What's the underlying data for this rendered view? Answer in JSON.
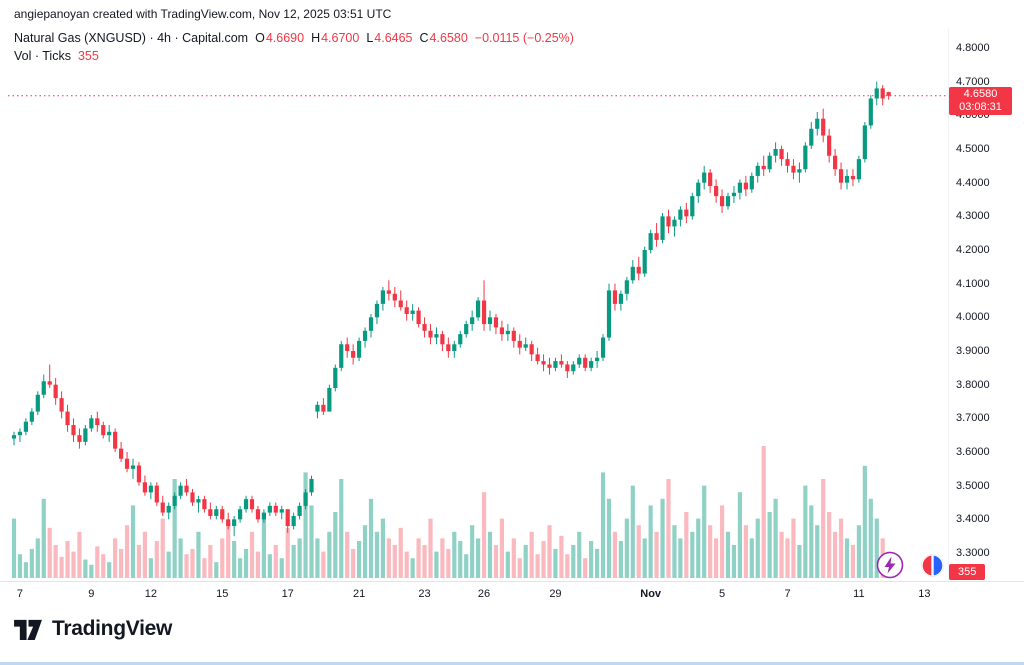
{
  "attribution": "angiepanoyan created with TradingView.com, Nov 12, 2025 03:51 UTC",
  "header": {
    "symbol_title": "Natural Gas (XNGUSD) · 4h · Capital.com",
    "ohlc": {
      "o_label": "O",
      "o": "4.6690",
      "h_label": "H",
      "h": "4.6700",
      "l_label": "L",
      "l": "4.6465",
      "c_label": "C",
      "c": "4.6580",
      "change": "−0.0115 (−0.25%)"
    },
    "volume_label": "Vol · Ticks",
    "volume_value": "355"
  },
  "badges": {
    "volume": "355"
  },
  "price_axis": {
    "labels": [
      "4.8000",
      "4.7000",
      "4.6000",
      "4.5000",
      "4.4000",
      "4.3000",
      "4.2000",
      "4.1000",
      "4.0000",
      "3.9000",
      "3.8000",
      "3.7000",
      "3.6000",
      "3.5000",
      "3.4000",
      "3.3000"
    ]
  },
  "time_axis": {
    "labels": [
      {
        "text": "7",
        "i": 1
      },
      {
        "text": "9",
        "i": 13
      },
      {
        "text": "12",
        "i": 23
      },
      {
        "text": "15",
        "i": 35
      },
      {
        "text": "17",
        "i": 46
      },
      {
        "text": "21",
        "i": 58
      },
      {
        "text": "23",
        "i": 69
      },
      {
        "text": "26",
        "i": 79
      },
      {
        "text": "29",
        "i": 91
      },
      {
        "text": "Nov",
        "i": 107,
        "bold": true
      },
      {
        "text": "5",
        "i": 119
      },
      {
        "text": "7",
        "i": 130
      },
      {
        "text": "11",
        "i": 142
      },
      {
        "text": "13",
        "i": 153
      }
    ]
  },
  "colors": {
    "up": "#089981",
    "down": "#f23645",
    "vol_up": "rgba(8,153,129,0.45)",
    "vol_down": "rgba(242,54,69,0.35)",
    "badge": "#f23645",
    "axis_text": "#131722",
    "lightning": "#9c27b0",
    "broker_red": "#f23645",
    "broker_blue": "#2962ff"
  },
  "footer": {
    "logo_text": "TradingView"
  },
  "chart_data": {
    "type": "candlestick",
    "title": "Natural Gas (XNGUSD) · 4h · Capital.com",
    "symbol": "XNGUSD",
    "interval": "4h",
    "exchange": "Capital.com",
    "ohlc_current": {
      "open": 4.669,
      "high": 4.67,
      "low": 4.6465,
      "close": 4.658,
      "change": -0.0115,
      "change_pct": -0.25
    },
    "volume_current": 355,
    "volume_unit": "Ticks",
    "ylim": [
      3.3,
      4.8
    ],
    "y_ticks": [
      4.8,
      4.7,
      4.6,
      4.5,
      4.4,
      4.3,
      4.2,
      4.1,
      4.0,
      3.9,
      3.8,
      3.7,
      3.6,
      3.5,
      3.4,
      3.3
    ],
    "x_tick_labels": [
      "7",
      "9",
      "12",
      "15",
      "17",
      "21",
      "23",
      "26",
      "29",
      "Nov",
      "5",
      "7",
      "11",
      "13"
    ],
    "last": {
      "price": 4.658,
      "value": "4.6580",
      "countdown": "03:08:31"
    },
    "candles": [
      [
        3.64,
        3.66,
        3.62,
        3.65
      ],
      [
        3.65,
        3.67,
        3.63,
        3.66
      ],
      [
        3.66,
        3.7,
        3.65,
        3.69
      ],
      [
        3.69,
        3.73,
        3.68,
        3.72
      ],
      [
        3.72,
        3.78,
        3.71,
        3.77
      ],
      [
        3.77,
        3.83,
        3.76,
        3.81
      ],
      [
        3.81,
        3.86,
        3.79,
        3.8
      ],
      [
        3.8,
        3.82,
        3.74,
        3.76
      ],
      [
        3.76,
        3.78,
        3.7,
        3.72
      ],
      [
        3.72,
        3.74,
        3.66,
        3.68
      ],
      [
        3.68,
        3.7,
        3.63,
        3.65
      ],
      [
        3.65,
        3.67,
        3.61,
        3.63
      ],
      [
        3.63,
        3.68,
        3.62,
        3.67
      ],
      [
        3.67,
        3.71,
        3.66,
        3.7
      ],
      [
        3.7,
        3.72,
        3.66,
        3.68
      ],
      [
        3.68,
        3.69,
        3.64,
        3.65
      ],
      [
        3.65,
        3.68,
        3.63,
        3.66
      ],
      [
        3.66,
        3.67,
        3.6,
        3.61
      ],
      [
        3.61,
        3.63,
        3.57,
        3.58
      ],
      [
        3.58,
        3.6,
        3.54,
        3.55
      ],
      [
        3.55,
        3.58,
        3.52,
        3.56
      ],
      [
        3.56,
        3.57,
        3.5,
        3.51
      ],
      [
        3.51,
        3.53,
        3.47,
        3.48
      ],
      [
        3.48,
        3.51,
        3.46,
        3.5
      ],
      [
        3.5,
        3.51,
        3.44,
        3.45
      ],
      [
        3.45,
        3.47,
        3.41,
        3.42
      ],
      [
        3.42,
        3.45,
        3.4,
        3.44
      ],
      [
        3.44,
        3.48,
        3.43,
        3.47
      ],
      [
        3.47,
        3.51,
        3.46,
        3.5
      ],
      [
        3.5,
        3.52,
        3.47,
        3.48
      ],
      [
        3.48,
        3.49,
        3.44,
        3.45
      ],
      [
        3.45,
        3.47,
        3.42,
        3.46
      ],
      [
        3.46,
        3.47,
        3.42,
        3.43
      ],
      [
        3.43,
        3.45,
        3.4,
        3.41
      ],
      [
        3.41,
        3.44,
        3.4,
        3.43
      ],
      [
        3.43,
        3.44,
        3.39,
        3.4
      ],
      [
        3.4,
        3.42,
        3.37,
        3.38
      ],
      [
        3.38,
        3.41,
        3.35,
        3.4
      ],
      [
        3.4,
        3.44,
        3.39,
        3.43
      ],
      [
        3.43,
        3.47,
        3.42,
        3.46
      ],
      [
        3.46,
        3.47,
        3.42,
        3.43
      ],
      [
        3.43,
        3.44,
        3.39,
        3.4
      ],
      [
        3.4,
        3.43,
        3.39,
        3.42
      ],
      [
        3.42,
        3.45,
        3.41,
        3.44
      ],
      [
        3.44,
        3.45,
        3.41,
        3.42
      ],
      [
        3.42,
        3.44,
        3.4,
        3.43
      ],
      [
        3.43,
        3.43,
        3.36,
        3.38
      ],
      [
        3.38,
        3.42,
        3.37,
        3.41
      ],
      [
        3.41,
        3.45,
        3.4,
        3.44
      ],
      [
        3.44,
        3.49,
        3.43,
        3.48
      ],
      [
        3.48,
        3.53,
        3.47,
        3.52
      ],
      [
        3.72,
        3.75,
        3.7,
        3.74
      ],
      [
        3.74,
        3.76,
        3.71,
        3.72
      ],
      [
        3.72,
        3.8,
        3.72,
        3.79
      ],
      [
        3.79,
        3.86,
        3.78,
        3.85
      ],
      [
        3.85,
        3.93,
        3.84,
        3.92
      ],
      [
        3.92,
        3.94,
        3.88,
        3.9
      ],
      [
        3.9,
        3.92,
        3.86,
        3.88
      ],
      [
        3.88,
        3.94,
        3.87,
        3.93
      ],
      [
        3.93,
        3.97,
        3.91,
        3.96
      ],
      [
        3.96,
        4.01,
        3.94,
        4.0
      ],
      [
        4.0,
        4.05,
        3.98,
        4.04
      ],
      [
        4.04,
        4.09,
        4.02,
        4.08
      ],
      [
        4.08,
        4.11,
        4.05,
        4.07
      ],
      [
        4.07,
        4.09,
        4.03,
        4.05
      ],
      [
        4.05,
        4.08,
        4.02,
        4.03
      ],
      [
        4.03,
        4.05,
        3.99,
        4.01
      ],
      [
        4.01,
        4.04,
        3.99,
        4.02
      ],
      [
        4.02,
        4.03,
        3.97,
        3.98
      ],
      [
        3.98,
        4.0,
        3.94,
        3.96
      ],
      [
        3.96,
        3.98,
        3.92,
        3.94
      ],
      [
        3.94,
        3.97,
        3.92,
        3.95
      ],
      [
        3.95,
        3.96,
        3.9,
        3.92
      ],
      [
        3.92,
        3.94,
        3.88,
        3.9
      ],
      [
        3.9,
        3.93,
        3.88,
        3.92
      ],
      [
        3.92,
        3.96,
        3.91,
        3.95
      ],
      [
        3.95,
        3.99,
        3.94,
        3.98
      ],
      [
        3.98,
        4.02,
        3.96,
        4.0
      ],
      [
        4.0,
        4.06,
        3.99,
        4.05
      ],
      [
        4.05,
        4.11,
        3.96,
        3.98
      ],
      [
        3.98,
        4.02,
        3.96,
        4.0
      ],
      [
        4.0,
        4.01,
        3.95,
        3.97
      ],
      [
        3.97,
        3.99,
        3.93,
        3.95
      ],
      [
        3.95,
        3.98,
        3.93,
        3.96
      ],
      [
        3.96,
        3.97,
        3.91,
        3.93
      ],
      [
        3.93,
        3.95,
        3.89,
        3.91
      ],
      [
        3.91,
        3.94,
        3.9,
        3.92
      ],
      [
        3.92,
        3.93,
        3.87,
        3.89
      ],
      [
        3.89,
        3.91,
        3.86,
        3.87
      ],
      [
        3.87,
        3.89,
        3.84,
        3.86
      ],
      [
        3.86,
        3.88,
        3.83,
        3.85
      ],
      [
        3.85,
        3.88,
        3.84,
        3.87
      ],
      [
        3.87,
        3.89,
        3.85,
        3.86
      ],
      [
        3.86,
        3.87,
        3.82,
        3.84
      ],
      [
        3.84,
        3.87,
        3.83,
        3.86
      ],
      [
        3.86,
        3.89,
        3.85,
        3.88
      ],
      [
        3.88,
        3.89,
        3.84,
        3.85
      ],
      [
        3.85,
        3.88,
        3.84,
        3.87
      ],
      [
        3.87,
        3.9,
        3.85,
        3.88
      ],
      [
        3.88,
        3.95,
        3.87,
        3.94
      ],
      [
        3.94,
        4.1,
        3.93,
        4.08
      ],
      [
        4.08,
        4.1,
        4.02,
        4.04
      ],
      [
        4.04,
        4.08,
        4.02,
        4.07
      ],
      [
        4.07,
        4.12,
        4.05,
        4.11
      ],
      [
        4.11,
        4.17,
        4.1,
        4.15
      ],
      [
        4.15,
        4.18,
        4.11,
        4.13
      ],
      [
        4.13,
        4.21,
        4.12,
        4.2
      ],
      [
        4.2,
        4.26,
        4.19,
        4.25
      ],
      [
        4.25,
        4.28,
        4.21,
        4.23
      ],
      [
        4.23,
        4.31,
        4.22,
        4.3
      ],
      [
        4.3,
        4.32,
        4.25,
        4.27
      ],
      [
        4.27,
        4.3,
        4.24,
        4.29
      ],
      [
        4.29,
        4.33,
        4.27,
        4.32
      ],
      [
        4.32,
        4.34,
        4.28,
        4.3
      ],
      [
        4.3,
        4.37,
        4.29,
        4.36
      ],
      [
        4.36,
        4.41,
        4.34,
        4.4
      ],
      [
        4.4,
        4.45,
        4.38,
        4.43
      ],
      [
        4.43,
        4.44,
        4.37,
        4.39
      ],
      [
        4.39,
        4.41,
        4.34,
        4.36
      ],
      [
        4.36,
        4.38,
        4.31,
        4.33
      ],
      [
        4.33,
        4.37,
        4.32,
        4.36
      ],
      [
        4.36,
        4.39,
        4.34,
        4.37
      ],
      [
        4.37,
        4.41,
        4.35,
        4.4
      ],
      [
        4.4,
        4.42,
        4.36,
        4.38
      ],
      [
        4.38,
        4.43,
        4.37,
        4.42
      ],
      [
        4.42,
        4.46,
        4.4,
        4.45
      ],
      [
        4.45,
        4.48,
        4.42,
        4.44
      ],
      [
        4.44,
        4.49,
        4.43,
        4.48
      ],
      [
        4.48,
        4.52,
        4.46,
        4.5
      ],
      [
        4.5,
        4.51,
        4.45,
        4.47
      ],
      [
        4.47,
        4.49,
        4.43,
        4.45
      ],
      [
        4.45,
        4.47,
        4.41,
        4.43
      ],
      [
        4.43,
        4.46,
        4.4,
        4.44
      ],
      [
        4.44,
        4.52,
        4.43,
        4.51
      ],
      [
        4.51,
        4.58,
        4.5,
        4.56
      ],
      [
        4.56,
        4.61,
        4.54,
        4.59
      ],
      [
        4.59,
        4.62,
        4.52,
        4.54
      ],
      [
        4.54,
        4.56,
        4.46,
        4.48
      ],
      [
        4.48,
        4.5,
        4.42,
        4.44
      ],
      [
        4.44,
        4.46,
        4.38,
        4.4
      ],
      [
        4.4,
        4.44,
        4.38,
        4.42
      ],
      [
        4.42,
        4.44,
        4.39,
        4.41
      ],
      [
        4.41,
        4.48,
        4.4,
        4.47
      ],
      [
        4.47,
        4.58,
        4.46,
        4.57
      ],
      [
        4.57,
        4.66,
        4.56,
        4.65
      ],
      [
        4.65,
        4.7,
        4.63,
        4.68
      ],
      [
        4.68,
        4.69,
        4.63,
        4.65
      ],
      [
        4.669,
        4.67,
        4.6465,
        4.658
      ]
    ],
    "volumes": [
      0.45,
      0.18,
      0.12,
      0.22,
      0.3,
      0.6,
      0.38,
      0.25,
      0.16,
      0.28,
      0.2,
      0.35,
      0.14,
      0.1,
      0.24,
      0.18,
      0.12,
      0.3,
      0.22,
      0.4,
      0.55,
      0.25,
      0.35,
      0.15,
      0.28,
      0.45,
      0.2,
      0.75,
      0.3,
      0.18,
      0.22,
      0.35,
      0.15,
      0.25,
      0.12,
      0.3,
      0.42,
      0.28,
      0.15,
      0.22,
      0.35,
      0.2,
      0.45,
      0.18,
      0.25,
      0.15,
      0.38,
      0.25,
      0.3,
      0.8,
      0.55,
      0.3,
      0.2,
      0.35,
      0.5,
      0.75,
      0.35,
      0.22,
      0.28,
      0.4,
      0.6,
      0.35,
      0.45,
      0.3,
      0.25,
      0.38,
      0.2,
      0.15,
      0.3,
      0.25,
      0.45,
      0.2,
      0.3,
      0.22,
      0.35,
      0.28,
      0.18,
      0.4,
      0.3,
      0.65,
      0.35,
      0.25,
      0.45,
      0.2,
      0.3,
      0.15,
      0.25,
      0.35,
      0.18,
      0.28,
      0.4,
      0.22,
      0.32,
      0.18,
      0.25,
      0.35,
      0.15,
      0.28,
      0.22,
      0.8,
      0.6,
      0.35,
      0.28,
      0.45,
      0.7,
      0.4,
      0.3,
      0.55,
      0.35,
      0.6,
      0.75,
      0.4,
      0.3,
      0.5,
      0.35,
      0.45,
      0.7,
      0.4,
      0.3,
      0.55,
      0.35,
      0.25,
      0.65,
      0.4,
      0.3,
      0.45,
      1.0,
      0.5,
      0.6,
      0.35,
      0.3,
      0.45,
      0.25,
      0.7,
      0.55,
      0.4,
      0.75,
      0.5,
      0.35,
      0.45,
      0.3,
      0.25,
      0.4,
      0.85,
      0.6,
      0.45,
      0.3,
      0.2
    ]
  }
}
